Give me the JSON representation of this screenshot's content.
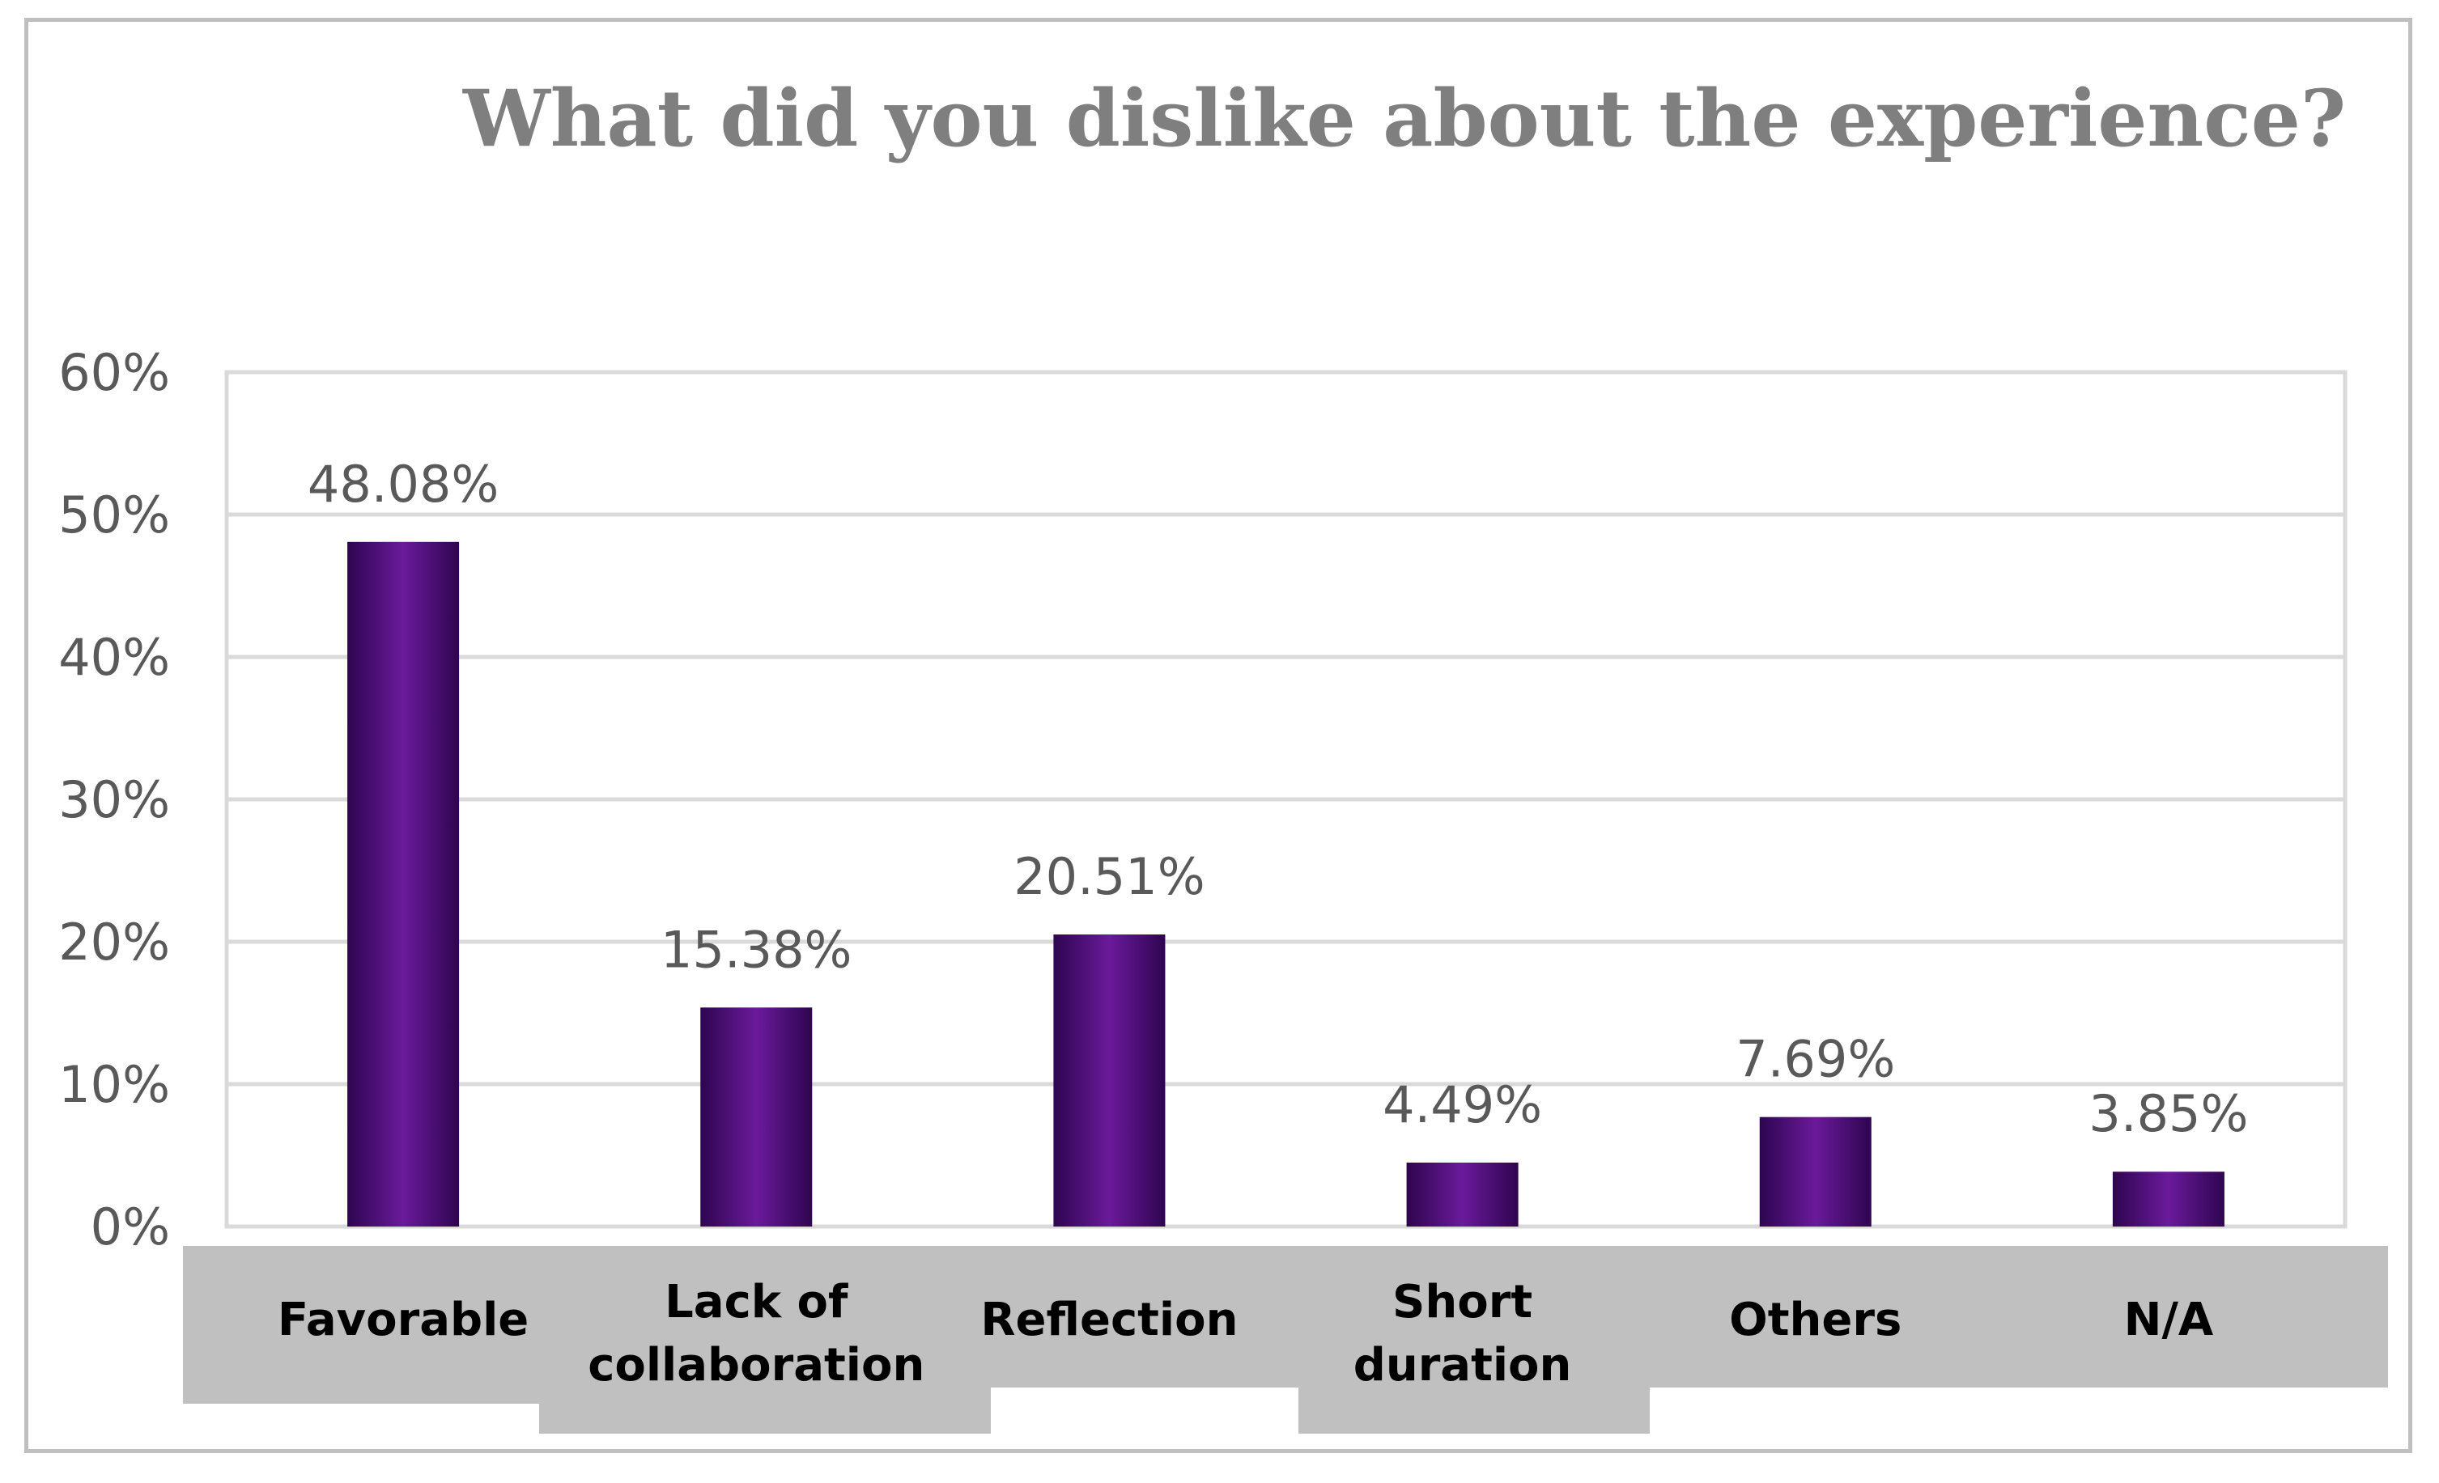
{
  "chart_data": {
    "type": "bar",
    "title": "What did you dislike about the experience?",
    "categories": [
      "Favorable",
      "Lack of collaboration",
      "Reflection",
      "Short duration",
      "Others",
      "N/A"
    ],
    "category_lines": [
      [
        "Favorable"
      ],
      [
        "Lack of",
        "collaboration"
      ],
      [
        "Reflection"
      ],
      [
        "Short",
        "duration"
      ],
      [
        "Others"
      ],
      [
        "N/A"
      ]
    ],
    "values": [
      48.08,
      15.38,
      20.51,
      4.49,
      7.69,
      3.85
    ],
    "value_labels": [
      "48.08%",
      "15.38%",
      "20.51%",
      "4.49%",
      "7.69%",
      "3.85%"
    ],
    "ylim": [
      0,
      60
    ],
    "yticks": [
      0,
      10,
      20,
      30,
      40,
      50,
      60
    ],
    "ytick_labels": [
      "0%",
      "10%",
      "20%",
      "30%",
      "40%",
      "50%",
      "60%"
    ],
    "xlabel": "",
    "ylabel": "",
    "grid": true,
    "legend": "none",
    "colors": {
      "bar": "#4b0c78",
      "bar_dark": "#2e0550",
      "bar_light": "#6a1a9a",
      "category_box": "#c0c0c0",
      "grid": "#d9d9d9",
      "text": "#595959",
      "title": "#7f7f7f"
    }
  }
}
